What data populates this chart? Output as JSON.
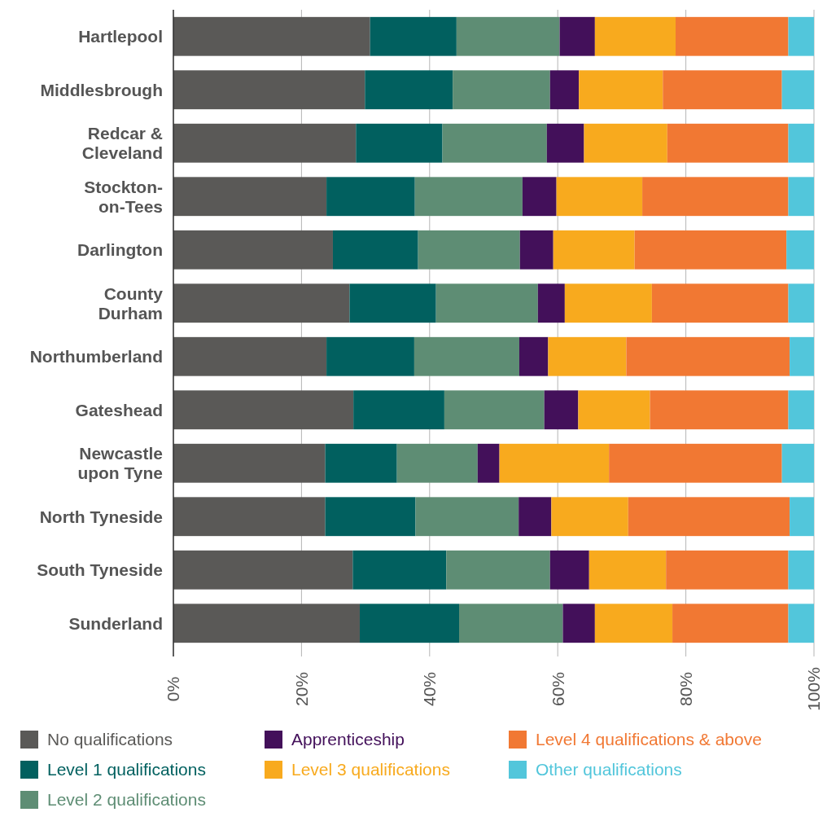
{
  "chart_data": {
    "type": "bar",
    "orientation": "horizontal",
    "stacked": true,
    "categories": [
      "Hartlepool",
      "Middlesbrough",
      "Redcar &\nCleveland",
      "Stockton-\non-Tees",
      "Darlington",
      "County\nDurham",
      "Northumberland",
      "Gateshead",
      "Newcastle\nupon Tyne",
      "North Tyneside",
      "South Tyneside",
      "Sunderland"
    ],
    "series": [
      {
        "name": "No qualifications",
        "color": "#5a5957",
        "values": [
          30.7,
          29.9,
          28.5,
          23.9,
          24.9,
          27.5,
          23.9,
          28.1,
          23.7,
          23.7,
          28.0,
          29.1
        ]
      },
      {
        "name": "Level 1 qualifications",
        "color": "#01605f",
        "values": [
          13.5,
          13.7,
          13.5,
          13.8,
          13.3,
          13.5,
          13.7,
          14.2,
          11.2,
          14.1,
          14.6,
          15.5
        ]
      },
      {
        "name": "Level 2 qualifications",
        "color": "#5e8d74",
        "values": [
          16.1,
          15.2,
          16.3,
          16.8,
          15.9,
          15.9,
          16.4,
          15.6,
          12.6,
          16.1,
          16.2,
          16.2
        ]
      },
      {
        "name": "Apprenticeship",
        "color": "#43105a",
        "values": [
          5.5,
          4.5,
          5.8,
          5.3,
          5.2,
          4.2,
          4.5,
          5.3,
          3.4,
          5.1,
          6.1,
          5.0
        ]
      },
      {
        "name": "Level 3 qualifications",
        "color": "#f8aa1e",
        "values": [
          12.6,
          13.1,
          13.0,
          13.4,
          12.7,
          13.6,
          12.2,
          11.2,
          17.1,
          12.0,
          12.0,
          12.1
        ]
      },
      {
        "name": "Level 4 qualifications & above",
        "color": "#f17833",
        "values": [
          17.6,
          18.6,
          18.9,
          22.8,
          23.7,
          21.3,
          25.5,
          21.6,
          27.0,
          25.2,
          19.1,
          18.1
        ]
      },
      {
        "name": "Other qualifications",
        "color": "#52c6db",
        "values": [
          4.0,
          5.0,
          4.0,
          4.0,
          4.3,
          4.0,
          3.8,
          4.0,
          5.0,
          3.8,
          4.0,
          4.0
        ]
      }
    ],
    "xlim": [
      0,
      100
    ],
    "xticks": [
      {
        "value": 0,
        "label": "0%"
      },
      {
        "value": 20,
        "label": "20%"
      },
      {
        "value": 40,
        "label": "40%"
      },
      {
        "value": 60,
        "label": "60%"
      },
      {
        "value": 80,
        "label": "80%"
      },
      {
        "value": 100,
        "label": "100%"
      }
    ],
    "grid": "x",
    "legend": "bottom"
  }
}
